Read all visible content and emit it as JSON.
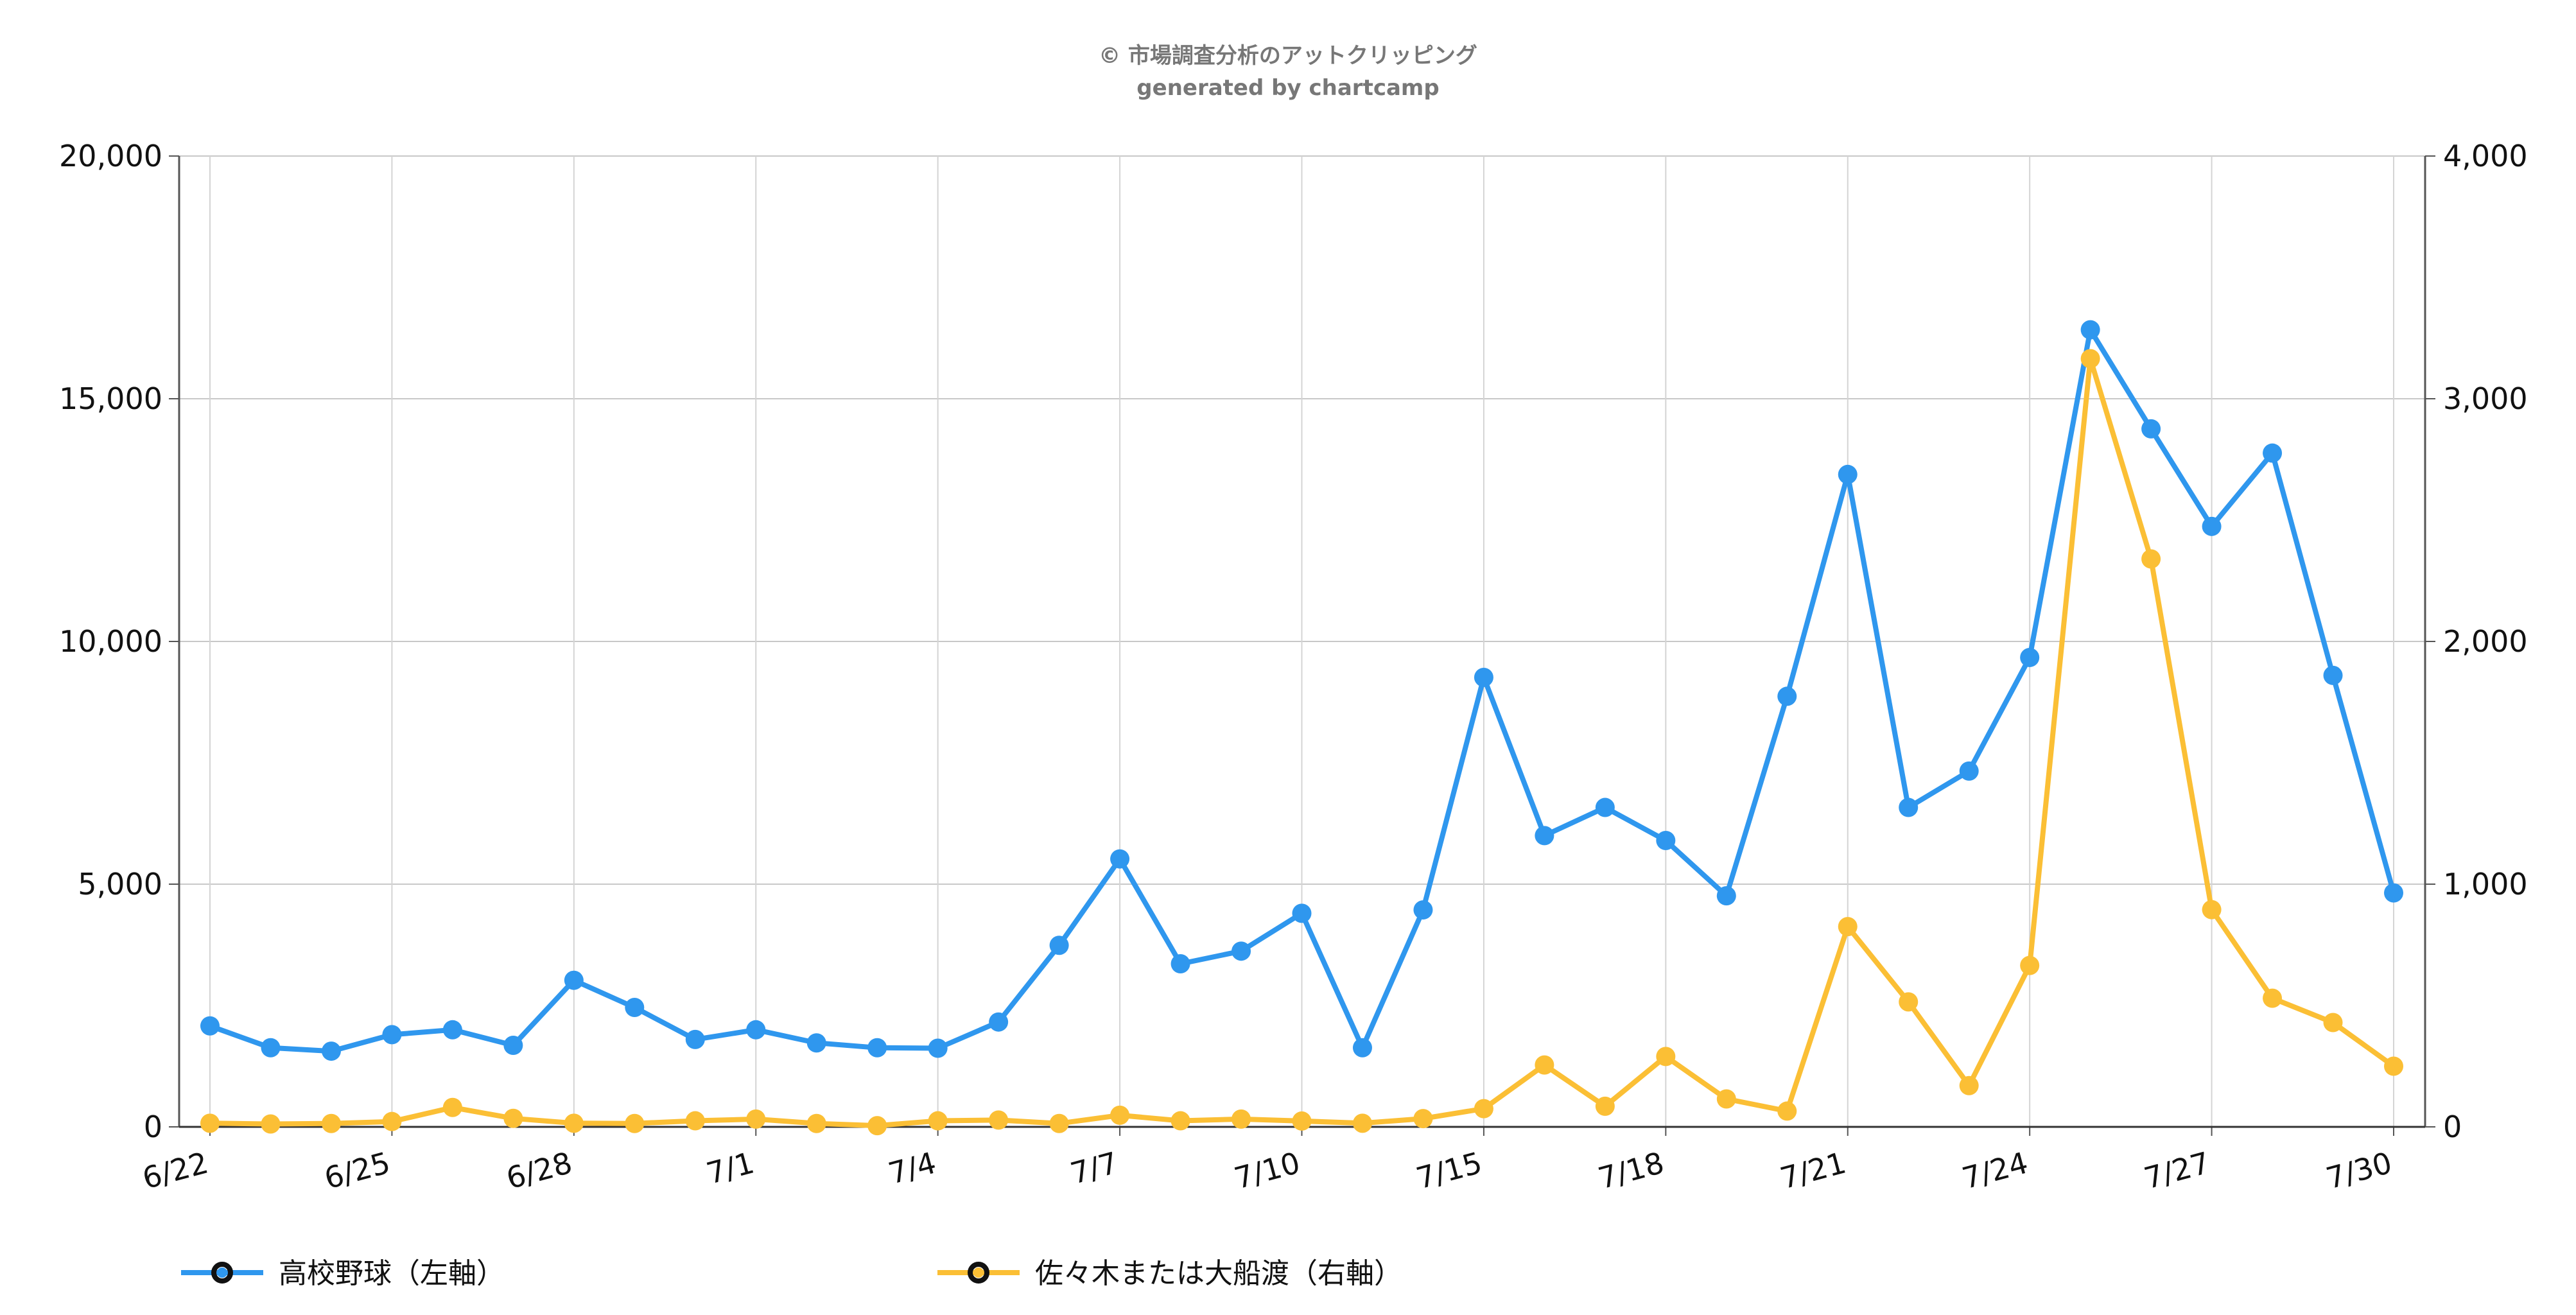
{
  "credit": {
    "line1": "© 市場調査分析のアットクリッピング",
    "line2": "generated by chartcamp"
  },
  "chart_data": {
    "type": "line",
    "x": [
      "6/22",
      "6/23",
      "6/24",
      "6/25",
      "6/26",
      "6/27",
      "6/28",
      "6/29",
      "6/30",
      "7/1",
      "7/2",
      "7/3",
      "7/4",
      "7/5",
      "7/6",
      "7/7",
      "7/8",
      "7/9",
      "7/10",
      "7/11",
      "7/12",
      "7/15",
      "7/16",
      "7/17",
      "7/18",
      "7/19",
      "7/20",
      "7/21",
      "7/22",
      "7/23",
      "7/24",
      "7/25",
      "7/26",
      "7/27",
      "7/28",
      "7/29",
      "7/30"
    ],
    "x_tick_labels": [
      "6/22",
      "6/25",
      "6/28",
      "7/1",
      "7/4",
      "7/7",
      "7/10",
      "7/15",
      "7/18",
      "7/21",
      "7/24",
      "7/27",
      "7/30"
    ],
    "y_left": {
      "ticks": [
        "20,000",
        "15,000",
        "10,000",
        "5,000",
        "0"
      ],
      "min": 0,
      "max": 20000
    },
    "y_right": {
      "ticks": [
        "4,000",
        "3,000",
        "2,000",
        "1,000",
        "0"
      ],
      "min": 0,
      "max": 4000
    },
    "grid": true,
    "legend_position": "bottom",
    "series": [
      {
        "name": "高校野球（左軸）",
        "axis": "left",
        "color": "#2f97ee",
        "values": [
          2080,
          1630,
          1560,
          1900,
          2000,
          1680,
          3020,
          2460,
          1800,
          2000,
          1730,
          1630,
          1620,
          2160,
          3740,
          5520,
          3360,
          3620,
          4400,
          1630,
          4470,
          9260,
          6000,
          6580,
          5900,
          4760,
          8870,
          13440,
          6580,
          7330,
          9670,
          16420,
          14380,
          12370,
          13880,
          9300,
          4820
        ]
      },
      {
        "name": "佐々木または大船渡（右軸）",
        "axis": "right",
        "color": "#fbbf35",
        "values": [
          15,
          12,
          14,
          22,
          80,
          35,
          15,
          14,
          25,
          32,
          14,
          5,
          25,
          28,
          14,
          48,
          25,
          32,
          24,
          15,
          34,
          75,
          255,
          85,
          290,
          115,
          65,
          825,
          515,
          170,
          665,
          3165,
          2340,
          895,
          530,
          430,
          250
        ]
      }
    ]
  }
}
